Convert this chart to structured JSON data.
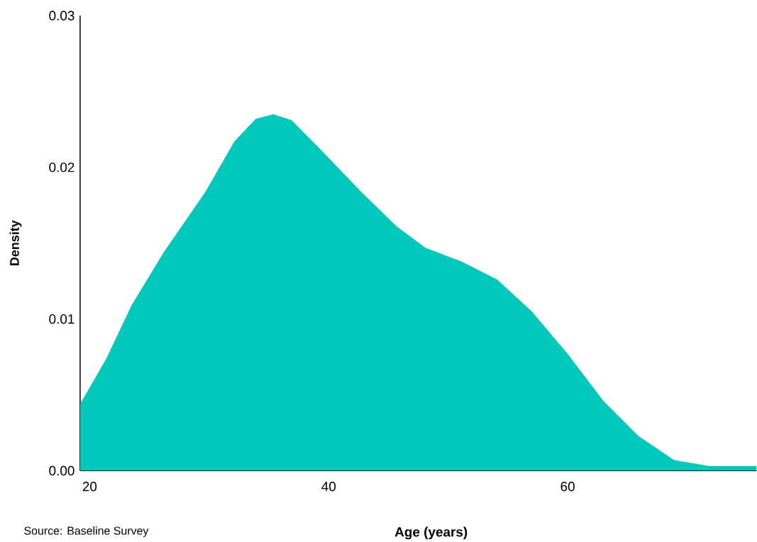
{
  "chart_data": {
    "type": "area",
    "xlabel": "Age (years)",
    "ylabel": "Density",
    "annotations": [
      "Source: Baseline Survey"
    ],
    "color": "#00c9bc",
    "x": [
      19.2,
      21.4,
      23.5,
      26.2,
      29.7,
      32.1,
      33.9,
      35.4,
      36.9,
      39.3,
      42.7,
      45.7,
      48.1,
      51.1,
      54.1,
      57.0,
      60.0,
      63.0,
      65.9,
      68.9,
      71.9,
      75.8
    ],
    "values": [
      0.0044,
      0.0074,
      0.0109,
      0.0144,
      0.0184,
      0.0217,
      0.0232,
      0.0235,
      0.0231,
      0.0212,
      0.0184,
      0.0161,
      0.0147,
      0.0138,
      0.0126,
      0.0105,
      0.0077,
      0.0046,
      0.0023,
      0.0007,
      0.0003,
      0.0003
    ],
    "xlim": [
      19.2,
      75.8
    ],
    "ylim": [
      0,
      0.03
    ],
    "xticks": [
      20,
      40,
      60
    ],
    "yticks": [
      {
        "value": 0,
        "label": "0.00"
      },
      0.01,
      0.02,
      0.03
    ]
  }
}
